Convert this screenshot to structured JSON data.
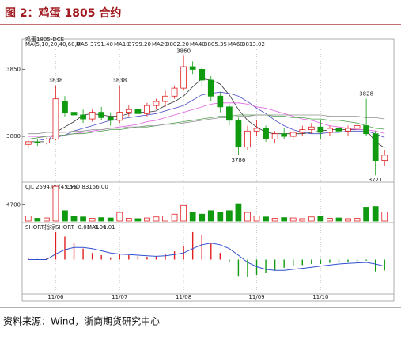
{
  "title": "图 2：鸡蛋 1805 合约",
  "source": "资料来源：Wind，浙商期货研究中心",
  "chart_data": [
    {
      "type": "candlestick",
      "subtitle": "鸡蛋1805-DCE",
      "indicator": "MA(5,10,20,40,60,0)",
      "categories": [
        null,
        null,
        null,
        "11/06",
        null,
        null,
        null,
        null,
        null,
        null,
        "11/07",
        null,
        null,
        null,
        null,
        null,
        null,
        "11/08",
        null,
        null,
        null,
        null,
        null,
        null,
        null,
        "11/09",
        null,
        null,
        null,
        null,
        null,
        null,
        "11/10",
        null,
        null,
        null,
        null,
        null,
        null,
        null
      ],
      "open": [
        3794,
        3796,
        3795,
        3798,
        3826,
        3818,
        3816,
        3813,
        3818,
        3814,
        3812,
        3818,
        3820,
        3817,
        3823,
        3826,
        3830,
        3836,
        3852,
        3850,
        3842,
        3830,
        3822,
        3812,
        3792,
        3804,
        3806,
        3798,
        3802,
        3800,
        3803,
        3805,
        3807,
        3803,
        3806,
        3804,
        3806,
        3808,
        3802,
        3782
      ],
      "high": [
        3797,
        3798,
        3799,
        3838,
        3830,
        3822,
        3820,
        3820,
        3822,
        3818,
        3838,
        3823,
        3824,
        3825,
        3828,
        3834,
        3838,
        3860,
        3856,
        3852,
        3845,
        3833,
        3824,
        3814,
        3808,
        3812,
        3808,
        3804,
        3806,
        3804,
        3808,
        3810,
        3812,
        3808,
        3810,
        3808,
        3810,
        3828,
        3804,
        3790
      ],
      "low": [
        3791,
        3793,
        3794,
        3797,
        3815,
        3812,
        3810,
        3811,
        3812,
        3808,
        3810,
        3815,
        3816,
        3815,
        3820,
        3822,
        3828,
        3834,
        3846,
        3838,
        3826,
        3818,
        3808,
        3786,
        3790,
        3800,
        3796,
        3795,
        3798,
        3797,
        3800,
        3802,
        3798,
        3800,
        3802,
        3800,
        3803,
        3800,
        3771,
        3778
      ],
      "close": [
        3796,
        3795,
        3798,
        3828,
        3818,
        3816,
        3813,
        3818,
        3814,
        3812,
        3818,
        3820,
        3817,
        3823,
        3826,
        3830,
        3836,
        3852,
        3850,
        3842,
        3830,
        3822,
        3812,
        3792,
        3804,
        3806,
        3798,
        3802,
        3800,
        3803,
        3805,
        3807,
        3803,
        3806,
        3804,
        3806,
        3808,
        3802,
        3782,
        3786
      ],
      "high_labels": [
        null,
        null,
        null,
        "3838",
        null,
        null,
        null,
        null,
        null,
        null,
        "3838",
        null,
        null,
        null,
        null,
        null,
        null,
        "3860",
        null,
        null,
        null,
        null,
        null,
        null,
        null,
        null,
        null,
        null,
        null,
        null,
        null,
        null,
        null,
        null,
        null,
        null,
        null,
        "3828",
        null,
        null
      ],
      "low_labels": [
        null,
        null,
        null,
        null,
        null,
        null,
        null,
        null,
        null,
        null,
        null,
        null,
        null,
        null,
        null,
        null,
        null,
        null,
        null,
        null,
        null,
        null,
        null,
        "3786",
        null,
        null,
        null,
        null,
        null,
        null,
        null,
        null,
        null,
        null,
        null,
        null,
        null,
        null,
        "3771",
        null
      ],
      "up_color": "#e02020",
      "down_color": "#109a10",
      "series": [
        {
          "name": "MA5",
          "color": "#333333",
          "last_label": "3791.40",
          "values": [
            3796,
            3796,
            3796,
            3803,
            3807,
            3811,
            3816,
            3817,
            3816,
            3815,
            3815,
            3817,
            3818,
            3818,
            3819,
            3823,
            3826,
            3830,
            3837,
            3843,
            3842,
            3839,
            3831,
            3820,
            3812,
            3807,
            3803,
            3802,
            3802,
            3802,
            3802,
            3803,
            3804,
            3805,
            3805,
            3805,
            3805,
            3805,
            3796,
            3791.4
          ]
        },
        {
          "name": "MA10",
          "color": "#4a4ac8",
          "last_label": "3799.20",
          "values": [
            3798,
            3798,
            3797,
            3799,
            3801,
            3804,
            3806,
            3808,
            3810,
            3812,
            3813,
            3814,
            3815,
            3816,
            3817,
            3819,
            3821,
            3823,
            3827,
            3831,
            3832,
            3833,
            3832,
            3830,
            3826,
            3821,
            3817,
            3812,
            3808,
            3805,
            3803,
            3802,
            3802,
            3803,
            3803,
            3804,
            3804,
            3804,
            3802,
            3799.2
          ]
        },
        {
          "name": "MA20",
          "color": "#e060e0",
          "last_label": "3802.20",
          "values": [
            3800,
            3800,
            3800,
            3800,
            3801,
            3802,
            3803,
            3804,
            3805,
            3806,
            3807,
            3808,
            3809,
            3811,
            3812,
            3814,
            3816,
            3818,
            3820,
            3822,
            3824,
            3825,
            3825,
            3825,
            3824,
            3822,
            3821,
            3819,
            3817,
            3815,
            3813,
            3812,
            3810,
            3808,
            3807,
            3806,
            3805,
            3805,
            3804,
            3802.2
          ]
        },
        {
          "name": "MA40",
          "color": "#50a050",
          "last_label": "3805.35",
          "values": [
            3798,
            3799,
            3800,
            3801,
            3801,
            3802,
            3802,
            3803,
            3804,
            3805,
            3805,
            3806,
            3807,
            3807,
            3808,
            3809,
            3810,
            3811,
            3812,
            3813,
            3814,
            3815,
            3815,
            3816,
            3816,
            3816,
            3816,
            3815,
            3815,
            3814,
            3814,
            3813,
            3813,
            3812,
            3812,
            3811,
            3810,
            3808,
            3806,
            3805.35
          ]
        },
        {
          "name": "MA60",
          "color": "#909090",
          "last_label": "3813.02",
          "values": [
            3802,
            3802,
            3803,
            3803,
            3803,
            3804,
            3804,
            3805,
            3805,
            3806,
            3806,
            3807,
            3807,
            3808,
            3808,
            3809,
            3809,
            3810,
            3811,
            3812,
            3813,
            3814,
            3814,
            3815,
            3815,
            3816,
            3816,
            3816,
            3816,
            3816,
            3816,
            3816,
            3816,
            3815,
            3815,
            3815,
            3815,
            3814,
            3814,
            3813.02
          ]
        }
      ],
      "ylim": [
        3767,
        3865
      ],
      "yticks": [
        3800,
        3850
      ]
    },
    {
      "type": "bar",
      "legend": [
        "CJL  2594.00(45:55)",
        "OPID  83156.00"
      ],
      "values": [
        1500,
        800,
        900,
        10000,
        3000,
        1500,
        1200,
        800,
        1000,
        900,
        2500,
        800,
        700,
        900,
        1200,
        1500,
        2000,
        4500,
        2500,
        2000,
        3000,
        2500,
        3000,
        5000,
        2500,
        1500,
        1200,
        800,
        1000,
        900,
        700,
        1200,
        1500,
        800,
        900,
        700,
        800,
        4000,
        4200,
        2594
      ],
      "ylim": [
        0,
        10500
      ],
      "yticks": [
        4700
      ]
    },
    {
      "type": "macd",
      "legend": [
        "SHORT指标",
        "SHORT  -0.01   -0.01",
        "MA1  -0.01"
      ],
      "up_color": "#e02020",
      "down_color": "#109a10",
      "values": [
        0.02,
        0.01,
        0.02,
        0.5,
        0.42,
        0.3,
        0.2,
        0.12,
        0.08,
        0.04,
        0.1,
        0.08,
        0.06,
        0.05,
        0.06,
        0.1,
        0.15,
        0.25,
        0.5,
        0.45,
        0.3,
        0.12,
        -0.05,
        -0.3,
        -0.32,
        -0.28,
        -0.25,
        -0.2,
        -0.15,
        -0.12,
        -0.1,
        -0.08,
        -0.08,
        -0.06,
        -0.05,
        -0.04,
        -0.03,
        -0.02,
        -0.22,
        -0.2
      ],
      "series": [
        {
          "color": "#3050d0",
          "values": [
            0,
            0,
            0,
            0.1,
            0.18,
            0.22,
            0.22,
            0.2,
            0.16,
            0.12,
            0.1,
            0.09,
            0.08,
            0.07,
            0.06,
            0.07,
            0.09,
            0.12,
            0.2,
            0.27,
            0.3,
            0.27,
            0.2,
            0.08,
            -0.05,
            -0.13,
            -0.18,
            -0.2,
            -0.2,
            -0.18,
            -0.16,
            -0.14,
            -0.12,
            -0.1,
            -0.08,
            -0.07,
            -0.06,
            -0.05,
            -0.08,
            -0.12
          ]
        }
      ],
      "ylim": [
        -0.6,
        0.6
      ]
    }
  ]
}
